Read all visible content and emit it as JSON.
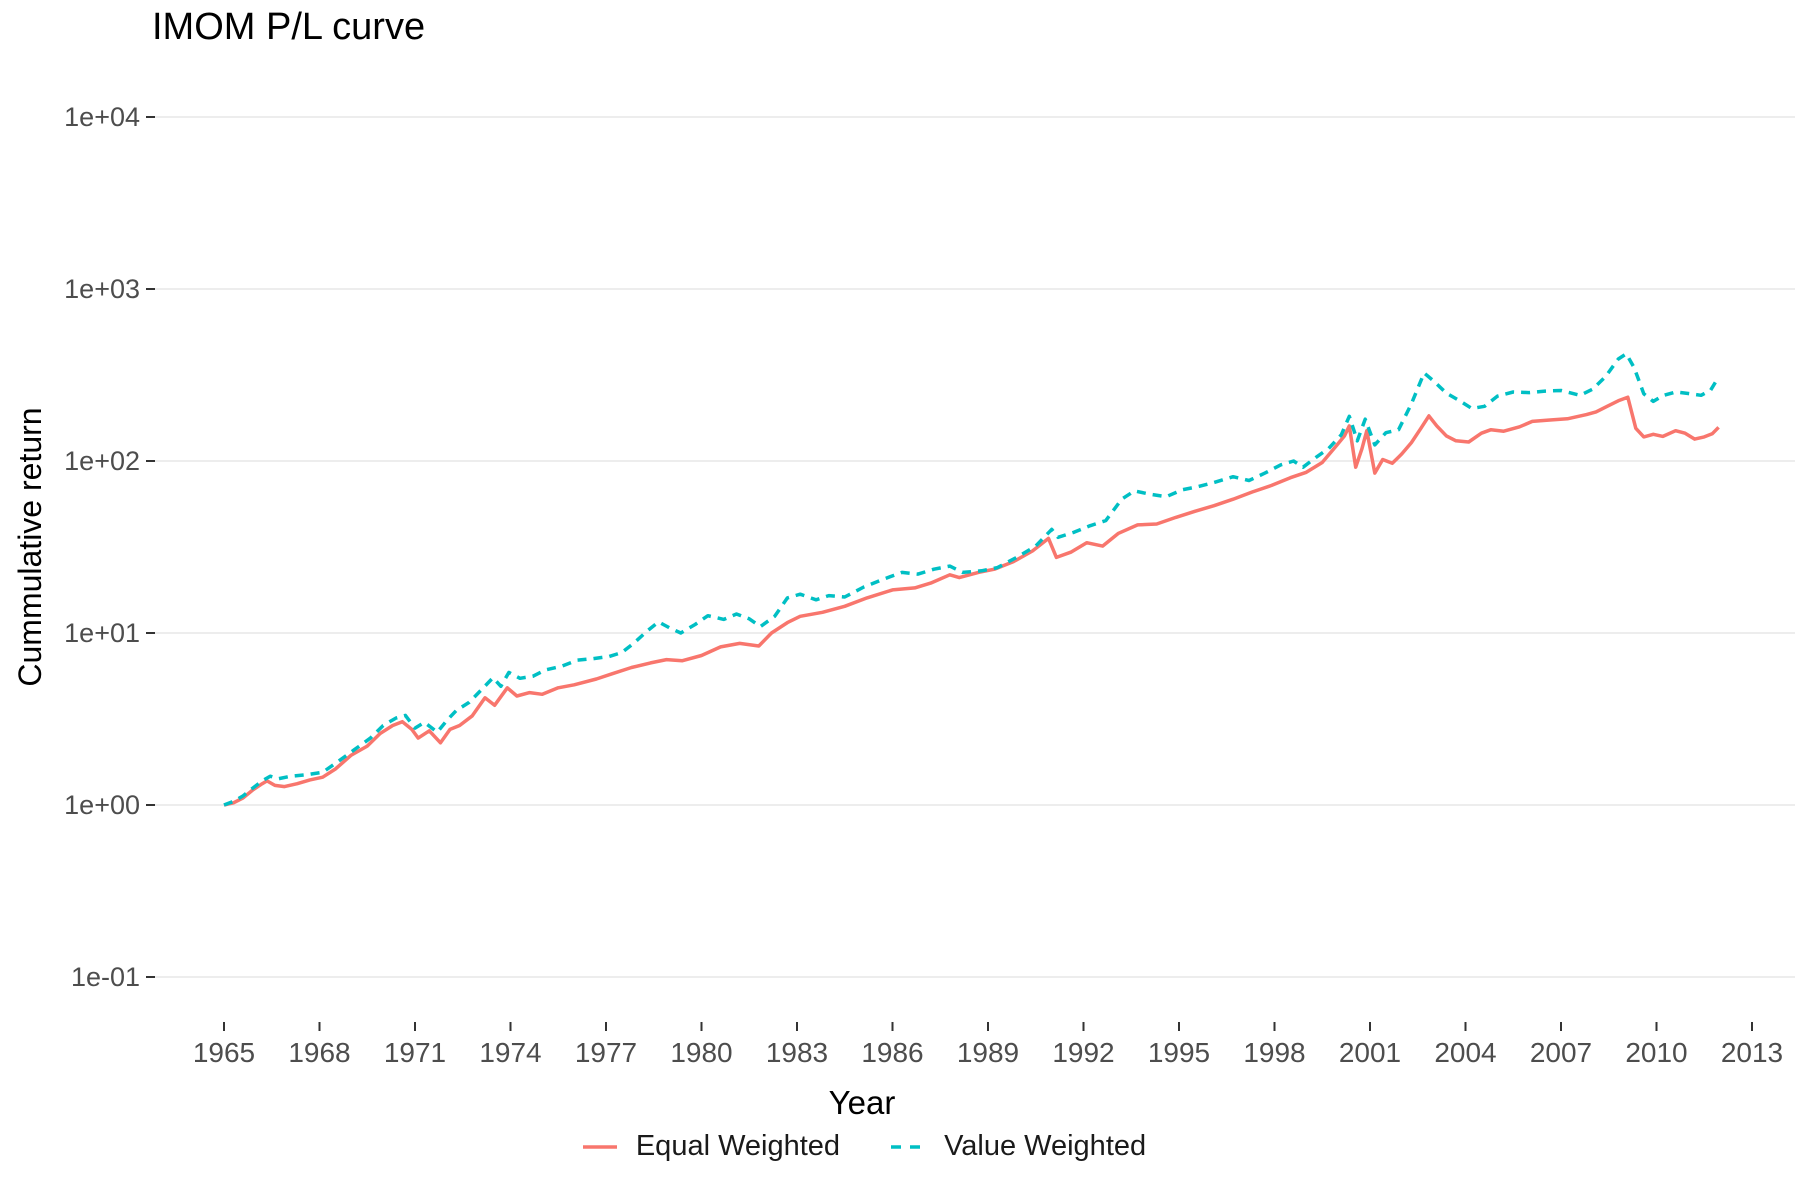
{
  "chart_data": {
    "type": "line",
    "title": "IMOM P/L curve",
    "xlabel": "Year",
    "ylabel": "Cummulative return",
    "x_scale": "linear",
    "y_scale": "log10",
    "xlim": [
      1962.8,
      2014.4
    ],
    "ylim": [
      0.1,
      10000
    ],
    "grid": "horizontal-major-only",
    "legend_position": "bottom",
    "x_ticks": [
      1965,
      1968,
      1971,
      1974,
      1977,
      1980,
      1983,
      1986,
      1989,
      1992,
      1995,
      1998,
      2001,
      2004,
      2007,
      2010,
      2013
    ],
    "y_ticks": [
      {
        "label": "1e-01",
        "value": 0.1
      },
      {
        "label": "1e+00",
        "value": 1
      },
      {
        "label": "1e+01",
        "value": 10
      },
      {
        "label": "1e+02",
        "value": 100
      },
      {
        "label": "1e+03",
        "value": 1000
      },
      {
        "label": "1e+04",
        "value": 10000
      }
    ],
    "series": [
      {
        "name": "Equal Weighted",
        "color": "#F8766D",
        "linetype": "solid",
        "points": [
          [
            1965.0,
            1.0
          ],
          [
            1965.3,
            1.03
          ],
          [
            1965.6,
            1.1
          ],
          [
            1965.9,
            1.22
          ],
          [
            1966.2,
            1.33
          ],
          [
            1966.35,
            1.38
          ],
          [
            1966.6,
            1.3
          ],
          [
            1966.9,
            1.28
          ],
          [
            1967.3,
            1.33
          ],
          [
            1967.7,
            1.4
          ],
          [
            1968.1,
            1.45
          ],
          [
            1968.5,
            1.62
          ],
          [
            1969.0,
            1.95
          ],
          [
            1969.5,
            2.2
          ],
          [
            1969.9,
            2.6
          ],
          [
            1970.3,
            2.9
          ],
          [
            1970.6,
            3.05
          ],
          [
            1970.9,
            2.75
          ],
          [
            1971.1,
            2.45
          ],
          [
            1971.45,
            2.7
          ],
          [
            1971.8,
            2.3
          ],
          [
            1972.1,
            2.75
          ],
          [
            1972.4,
            2.9
          ],
          [
            1972.8,
            3.3
          ],
          [
            1973.2,
            4.2
          ],
          [
            1973.5,
            3.8
          ],
          [
            1973.9,
            4.8
          ],
          [
            1974.2,
            4.3
          ],
          [
            1974.6,
            4.5
          ],
          [
            1975.0,
            4.4
          ],
          [
            1975.5,
            4.8
          ],
          [
            1976.0,
            5.0
          ],
          [
            1976.7,
            5.4
          ],
          [
            1977.2,
            5.8
          ],
          [
            1977.8,
            6.3
          ],
          [
            1978.4,
            6.7
          ],
          [
            1978.9,
            7.0
          ],
          [
            1979.4,
            6.9
          ],
          [
            1980.0,
            7.4
          ],
          [
            1980.6,
            8.3
          ],
          [
            1981.2,
            8.7
          ],
          [
            1981.8,
            8.4
          ],
          [
            1982.2,
            10.0
          ],
          [
            1982.7,
            11.5
          ],
          [
            1983.1,
            12.5
          ],
          [
            1983.8,
            13.2
          ],
          [
            1984.5,
            14.3
          ],
          [
            1985.2,
            16.0
          ],
          [
            1986.0,
            17.8
          ],
          [
            1986.7,
            18.3
          ],
          [
            1987.2,
            19.5
          ],
          [
            1987.8,
            21.8
          ],
          [
            1988.1,
            21.0
          ],
          [
            1988.7,
            22.5
          ],
          [
            1989.2,
            23.5
          ],
          [
            1989.8,
            26.0
          ],
          [
            1990.4,
            30.0
          ],
          [
            1990.9,
            35.5
          ],
          [
            1991.15,
            27.5
          ],
          [
            1991.6,
            29.5
          ],
          [
            1992.1,
            33.5
          ],
          [
            1992.6,
            32.0
          ],
          [
            1993.1,
            38.0
          ],
          [
            1993.7,
            42.5
          ],
          [
            1994.3,
            43.0
          ],
          [
            1994.9,
            47.0
          ],
          [
            1995.5,
            51.0
          ],
          [
            1996.1,
            55.0
          ],
          [
            1996.7,
            60.0
          ],
          [
            1997.3,
            66.0
          ],
          [
            1997.9,
            72.0
          ],
          [
            1998.5,
            80.0
          ],
          [
            1999.0,
            86.0
          ],
          [
            1999.5,
            98.0
          ],
          [
            1999.9,
            120
          ],
          [
            2000.2,
            140
          ],
          [
            2000.35,
            160
          ],
          [
            2000.55,
            92
          ],
          [
            2000.75,
            118
          ],
          [
            2000.9,
            150
          ],
          [
            2001.15,
            85
          ],
          [
            2001.4,
            102
          ],
          [
            2001.7,
            97
          ],
          [
            2002.0,
            110
          ],
          [
            2002.3,
            128
          ],
          [
            2002.6,
            155
          ],
          [
            2002.85,
            183
          ],
          [
            2003.1,
            160
          ],
          [
            2003.4,
            140
          ],
          [
            2003.7,
            131
          ],
          [
            2004.1,
            129
          ],
          [
            2004.5,
            145
          ],
          [
            2004.8,
            152
          ],
          [
            2005.2,
            149
          ],
          [
            2005.7,
            158
          ],
          [
            2006.1,
            170
          ],
          [
            2006.6,
            173
          ],
          [
            2007.2,
            176
          ],
          [
            2007.8,
            186
          ],
          [
            2008.1,
            193
          ],
          [
            2008.45,
            208
          ],
          [
            2008.8,
            224
          ],
          [
            2009.1,
            235
          ],
          [
            2009.35,
            155
          ],
          [
            2009.6,
            138
          ],
          [
            2009.9,
            143
          ],
          [
            2010.2,
            139
          ],
          [
            2010.6,
            150
          ],
          [
            2010.9,
            145
          ],
          [
            2011.2,
            134
          ],
          [
            2011.5,
            138
          ],
          [
            2011.75,
            144
          ],
          [
            2011.95,
            157
          ]
        ]
      },
      {
        "name": "Value Weighted",
        "color": "#00BFC4",
        "linetype": "dashed",
        "points": [
          [
            1965.0,
            1.0
          ],
          [
            1965.3,
            1.05
          ],
          [
            1965.6,
            1.13
          ],
          [
            1965.9,
            1.25
          ],
          [
            1966.2,
            1.38
          ],
          [
            1966.45,
            1.47
          ],
          [
            1966.7,
            1.42
          ],
          [
            1967.1,
            1.47
          ],
          [
            1967.6,
            1.5
          ],
          [
            1968.1,
            1.55
          ],
          [
            1968.6,
            1.8
          ],
          [
            1969.1,
            2.1
          ],
          [
            1969.6,
            2.45
          ],
          [
            1970.0,
            2.9
          ],
          [
            1970.4,
            3.2
          ],
          [
            1970.7,
            3.32
          ],
          [
            1971.0,
            2.8
          ],
          [
            1971.3,
            3.02
          ],
          [
            1971.7,
            2.65
          ],
          [
            1972.0,
            3.1
          ],
          [
            1972.3,
            3.55
          ],
          [
            1972.7,
            3.95
          ],
          [
            1973.1,
            4.7
          ],
          [
            1973.45,
            5.5
          ],
          [
            1973.7,
            4.9
          ],
          [
            1973.95,
            5.9
          ],
          [
            1974.3,
            5.45
          ],
          [
            1974.7,
            5.6
          ],
          [
            1975.1,
            6.1
          ],
          [
            1975.6,
            6.4
          ],
          [
            1976.1,
            6.95
          ],
          [
            1976.6,
            7.1
          ],
          [
            1977.1,
            7.3
          ],
          [
            1977.5,
            7.7
          ],
          [
            1977.9,
            8.8
          ],
          [
            1978.3,
            10.3
          ],
          [
            1978.65,
            11.6
          ],
          [
            1979.0,
            10.7
          ],
          [
            1979.35,
            10.0
          ],
          [
            1979.8,
            11.2
          ],
          [
            1980.2,
            12.6
          ],
          [
            1980.7,
            12.0
          ],
          [
            1981.1,
            12.9
          ],
          [
            1981.5,
            12.1
          ],
          [
            1981.85,
            10.9
          ],
          [
            1982.3,
            12.5
          ],
          [
            1982.7,
            16.0
          ],
          [
            1983.1,
            16.8
          ],
          [
            1983.6,
            15.6
          ],
          [
            1984.0,
            16.5
          ],
          [
            1984.5,
            16.2
          ],
          [
            1985.1,
            18.5
          ],
          [
            1985.7,
            20.5
          ],
          [
            1986.3,
            22.5
          ],
          [
            1986.8,
            22.0
          ],
          [
            1987.3,
            23.5
          ],
          [
            1987.8,
            24.5
          ],
          [
            1988.2,
            22.5
          ],
          [
            1988.8,
            23.0
          ],
          [
            1989.3,
            24.0
          ],
          [
            1989.9,
            27.5
          ],
          [
            1990.5,
            32.0
          ],
          [
            1991.0,
            40.0
          ],
          [
            1991.2,
            36.0
          ],
          [
            1991.7,
            38.5
          ],
          [
            1992.2,
            42.0
          ],
          [
            1992.7,
            45.0
          ],
          [
            1993.2,
            60.0
          ],
          [
            1993.6,
            67.0
          ],
          [
            1994.1,
            64.0
          ],
          [
            1994.6,
            62.0
          ],
          [
            1995.1,
            68.0
          ],
          [
            1995.6,
            71.0
          ],
          [
            1996.1,
            75.0
          ],
          [
            1996.7,
            81.0
          ],
          [
            1997.2,
            77.0
          ],
          [
            1997.7,
            85.0
          ],
          [
            1998.2,
            95.0
          ],
          [
            1998.6,
            100.0
          ],
          [
            1998.9,
            92.0
          ],
          [
            1999.3,
            105.0
          ],
          [
            1999.7,
            118.0
          ],
          [
            2000.1,
            142.0
          ],
          [
            2000.35,
            182.0
          ],
          [
            2000.6,
            131.0
          ],
          [
            2000.85,
            175.0
          ],
          [
            2001.15,
            124.0
          ],
          [
            2001.5,
            146.0
          ],
          [
            2001.9,
            152.0
          ],
          [
            2002.3,
            215.0
          ],
          [
            2002.7,
            325.0
          ],
          [
            2003.0,
            292.0
          ],
          [
            2003.4,
            248.0
          ],
          [
            2003.8,
            225.0
          ],
          [
            2004.2,
            202.0
          ],
          [
            2004.6,
            208.0
          ],
          [
            2005.0,
            238.0
          ],
          [
            2005.5,
            252.0
          ],
          [
            2006.0,
            250.0
          ],
          [
            2006.5,
            255.0
          ],
          [
            2007.0,
            257.0
          ],
          [
            2007.6,
            241.0
          ],
          [
            2008.0,
            262.0
          ],
          [
            2008.4,
            310.0
          ],
          [
            2008.8,
            392.0
          ],
          [
            2009.05,
            420.0
          ],
          [
            2009.3,
            348.0
          ],
          [
            2009.6,
            246.0
          ],
          [
            2009.9,
            222.0
          ],
          [
            2010.2,
            240.0
          ],
          [
            2010.6,
            252.0
          ],
          [
            2011.0,
            247.0
          ],
          [
            2011.4,
            241.0
          ],
          [
            2011.7,
            258.0
          ],
          [
            2011.95,
            308.0
          ]
        ]
      }
    ]
  }
}
